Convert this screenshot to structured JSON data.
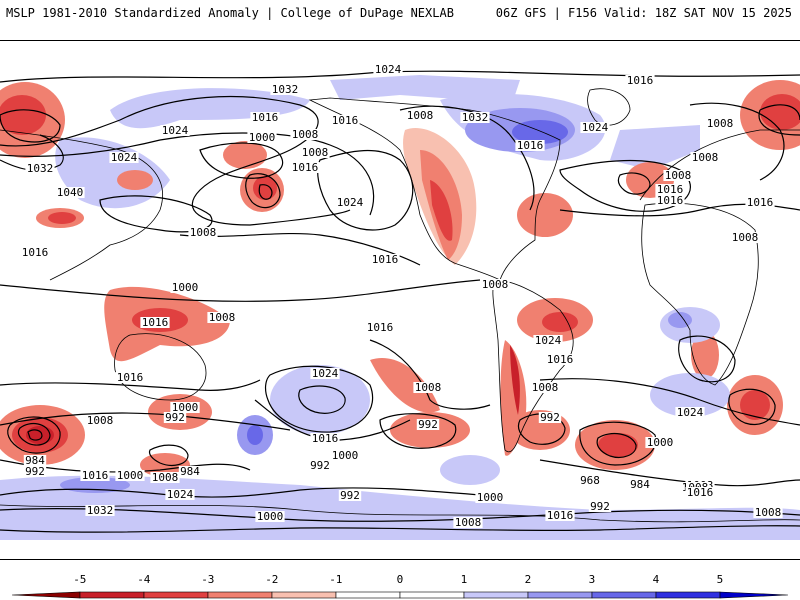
{
  "header": {
    "title_left": "MSLP 1981-2010 Standardized Anomaly | College of DuPage NEXLAB",
    "title_right": "06Z GFS | F156 Valid: 18Z SAT NOV 15 2025"
  },
  "colors": {
    "neg5": "#8b0000",
    "neg4": "#c8202a",
    "neg3": "#e04040",
    "neg2": "#f08070",
    "neg1": "#f8c0b0",
    "zero": "#ffffff",
    "pos1": "#c8c8f8",
    "pos2": "#9898f0",
    "pos3": "#6868e8",
    "pos4": "#3030e0",
    "pos5": "#0000c8",
    "coast": "#000000",
    "isobar": "#000000"
  },
  "colorbar": {
    "ticks": [
      "-5",
      "-4",
      "-3",
      "-2",
      "-1",
      "0",
      "1",
      "2",
      "3",
      "4",
      "5"
    ]
  },
  "isobars": {
    "labels": [
      "1024",
      "1016",
      "1032",
      "1024",
      "1016",
      "1008",
      "1000",
      "1016",
      "1032",
      "1024",
      "1040",
      "1016",
      "1008",
      "1016",
      "1008",
      "1024",
      "1016",
      "1032",
      "1024",
      "1008",
      "1016",
      "1008",
      "1016",
      "1008",
      "1008",
      "1016",
      "1016",
      "1008",
      "1000",
      "992",
      "1016",
      "1008",
      "984",
      "992",
      "1016",
      "1000",
      "1008",
      "984",
      "1024",
      "1032",
      "1016",
      "1000",
      "992",
      "1000",
      "992",
      "1008",
      "1024",
      "992",
      "1000",
      "992",
      "1008",
      "1000",
      "968",
      "984",
      "992",
      "1008",
      "1000",
      "1016",
      "1024",
      "1008",
      "1008",
      "1008",
      "1016",
      "1016",
      "1008",
      "1024",
      "1016",
      "1016",
      "1000",
      "1008"
    ]
  }
}
